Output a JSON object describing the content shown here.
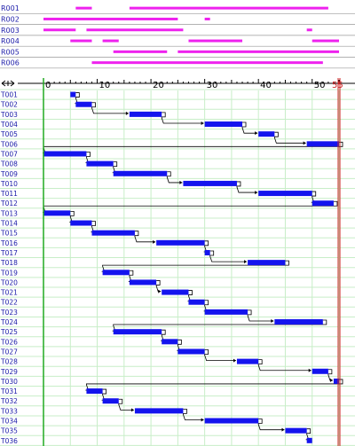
{
  "chart_data": {
    "type": "gantt",
    "x_ticks": [
      0,
      10,
      20,
      30,
      40,
      50
    ],
    "end_marker": 55,
    "xlim": [
      -2,
      55
    ],
    "colors": {
      "resource_bar": "#ee22ee",
      "task_bar": "#1414ee",
      "start_line": "#22aa22",
      "end_line": "#cc2222",
      "grid": "#c8eec8",
      "resource_grid": "#999999",
      "label": "#1a1aa8",
      "end_label": "#cc2222"
    },
    "resources": [
      {
        "name": "R001",
        "segments": [
          [
            6,
            9
          ],
          [
            16,
            53
          ]
        ]
      },
      {
        "name": "R002",
        "segments": [
          [
            0,
            25
          ],
          [
            30,
            31
          ]
        ]
      },
      {
        "name": "R003",
        "segments": [
          [
            0,
            6
          ],
          [
            8,
            26
          ],
          [
            49,
            50
          ]
        ]
      },
      {
        "name": "R004",
        "segments": [
          [
            5,
            9
          ],
          [
            11,
            14
          ],
          [
            27,
            37
          ],
          [
            50,
            55
          ]
        ]
      },
      {
        "name": "R005",
        "segments": [
          [
            13,
            23
          ],
          [
            25,
            55
          ]
        ]
      },
      {
        "name": "R006",
        "segments": [
          [
            9,
            52
          ]
        ]
      }
    ],
    "tasks": [
      {
        "name": "T001",
        "start": 5,
        "end": 6
      },
      {
        "name": "T002",
        "start": 6,
        "end": 9
      },
      {
        "name": "T003",
        "start": 16,
        "end": 22
      },
      {
        "name": "T004",
        "start": 30,
        "end": 37
      },
      {
        "name": "T005",
        "start": 40,
        "end": 43
      },
      {
        "name": "T006",
        "start": 49,
        "end": 55
      },
      {
        "name": "T007",
        "start": 0,
        "end": 8
      },
      {
        "name": "T008",
        "start": 8,
        "end": 13
      },
      {
        "name": "T009",
        "start": 13,
        "end": 23
      },
      {
        "name": "T010",
        "start": 26,
        "end": 36
      },
      {
        "name": "T011",
        "start": 40,
        "end": 50
      },
      {
        "name": "T012",
        "start": 50,
        "end": 54
      },
      {
        "name": "T013",
        "start": 0,
        "end": 5
      },
      {
        "name": "T014",
        "start": 5,
        "end": 9
      },
      {
        "name": "T015",
        "start": 9,
        "end": 17
      },
      {
        "name": "T016",
        "start": 21,
        "end": 30
      },
      {
        "name": "T017",
        "start": 30,
        "end": 31
      },
      {
        "name": "T018",
        "start": 38,
        "end": 45
      },
      {
        "name": "T019",
        "start": 11,
        "end": 16
      },
      {
        "name": "T020",
        "start": 16,
        "end": 21
      },
      {
        "name": "T021",
        "start": 22,
        "end": 27
      },
      {
        "name": "T022",
        "start": 27,
        "end": 30
      },
      {
        "name": "T023",
        "start": 30,
        "end": 38
      },
      {
        "name": "T024",
        "start": 43,
        "end": 52
      },
      {
        "name": "T025",
        "start": 13,
        "end": 22
      },
      {
        "name": "T026",
        "start": 22,
        "end": 25
      },
      {
        "name": "T027",
        "start": 25,
        "end": 30
      },
      {
        "name": "T028",
        "start": 36,
        "end": 40
      },
      {
        "name": "T029",
        "start": 50,
        "end": 53
      },
      {
        "name": "T030",
        "start": 54,
        "end": 55
      },
      {
        "name": "T031",
        "start": 8,
        "end": 11
      },
      {
        "name": "T032",
        "start": 11,
        "end": 14
      },
      {
        "name": "T033",
        "start": 17,
        "end": 26
      },
      {
        "name": "T034",
        "start": 30,
        "end": 40
      },
      {
        "name": "T035",
        "start": 45,
        "end": 49
      },
      {
        "name": "T036",
        "start": 49,
        "end": 50
      }
    ]
  }
}
